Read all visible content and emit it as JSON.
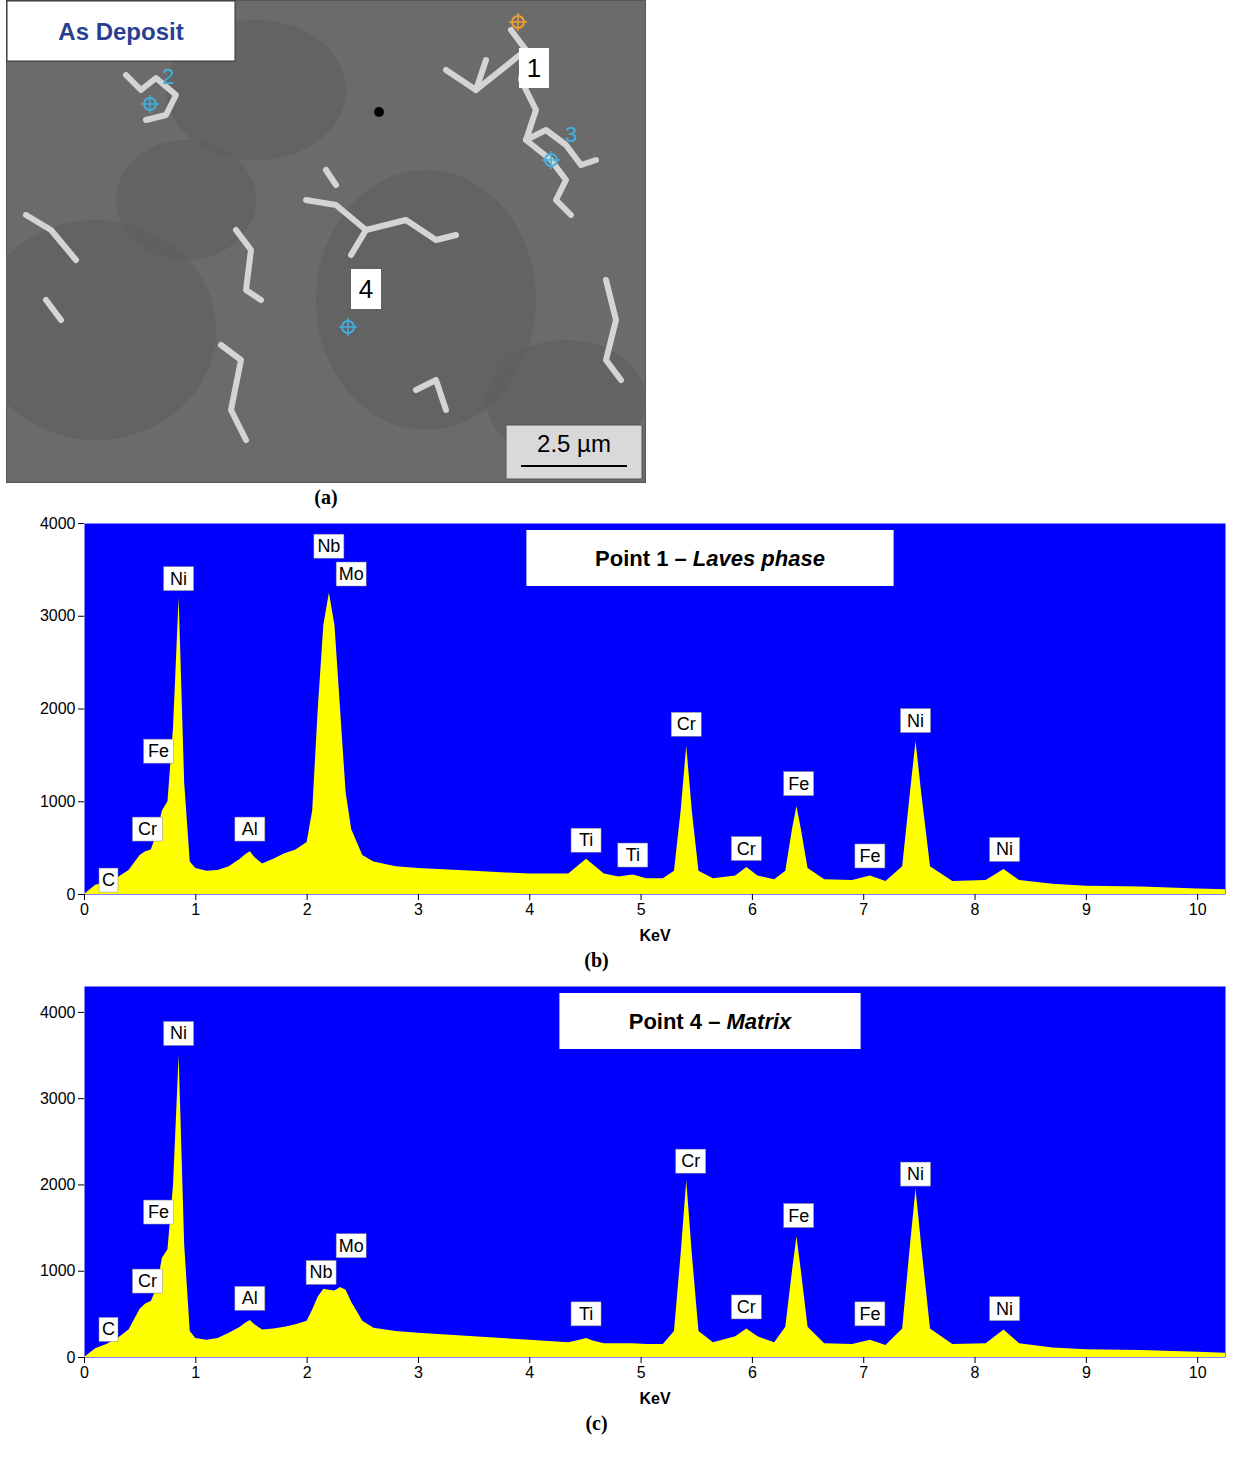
{
  "panel_a": {
    "title": "As Deposit",
    "points": [
      "1",
      "2",
      "3",
      "4"
    ],
    "scale_bar": "2.5 µm",
    "caption": "(a)"
  },
  "chart_data": [
    {
      "type": "area",
      "title": "Point 1 – Laves phase",
      "caption": "(b)",
      "x_label": "KeV",
      "x": [
        0,
        0.1,
        0.2,
        0.3,
        0.4,
        0.5,
        0.55,
        0.6,
        0.65,
        0.7,
        0.75,
        0.8,
        0.85,
        0.9,
        0.95,
        1.0,
        1.1,
        1.2,
        1.3,
        1.4,
        1.45,
        1.49,
        1.53,
        1.6,
        1.7,
        1.8,
        1.9,
        2.0,
        2.05,
        2.1,
        2.15,
        2.2,
        2.25,
        2.3,
        2.35,
        2.4,
        2.5,
        2.6,
        2.8,
        3.0,
        3.5,
        4.0,
        4.35,
        4.45,
        4.51,
        4.57,
        4.67,
        4.8,
        4.93,
        5.05,
        5.2,
        5.3,
        5.36,
        5.41,
        5.46,
        5.52,
        5.65,
        5.85,
        5.95,
        6.05,
        6.2,
        6.3,
        6.36,
        6.4,
        6.44,
        6.5,
        6.65,
        6.9,
        7.06,
        7.2,
        7.35,
        7.42,
        7.47,
        7.52,
        7.6,
        7.8,
        8.1,
        8.26,
        8.4,
        8.7,
        9.0,
        9.5,
        10.0,
        10.25
      ],
      "values": [
        0,
        100,
        130,
        180,
        260,
        420,
        460,
        480,
        650,
        900,
        1000,
        1800,
        3200,
        1200,
        350,
        280,
        250,
        260,
        300,
        380,
        430,
        460,
        400,
        330,
        380,
        440,
        480,
        560,
        900,
        2000,
        2900,
        3250,
        2900,
        2000,
        1100,
        700,
        420,
        350,
        300,
        280,
        250,
        220,
        220,
        320,
        380,
        320,
        220,
        190,
        210,
        170,
        170,
        250,
        900,
        1600,
        900,
        250,
        170,
        200,
        290,
        200,
        160,
        250,
        700,
        950,
        700,
        280,
        160,
        150,
        200,
        140,
        300,
        1100,
        1650,
        1100,
        300,
        140,
        150,
        270,
        150,
        110,
        90,
        80,
        60,
        50
      ],
      "color": "#ffff00",
      "xlim": [
        0,
        10.25
      ],
      "ylim": [
        0,
        4000
      ],
      "xticks": [
        0,
        1,
        2,
        3,
        4,
        5,
        6,
        7,
        8,
        9,
        10
      ],
      "yticks": [
        0,
        1000,
        2000,
        3000,
        4000
      ],
      "grid": false,
      "annotations": [
        {
          "text": "C",
          "x": 0.22,
          "y": 150
        },
        {
          "text": "Cr",
          "x": 0.57,
          "y": 700
        },
        {
          "text": "Fe",
          "x": 0.67,
          "y": 1540
        },
        {
          "text": "Ni",
          "x": 0.85,
          "y": 3400
        },
        {
          "text": "Al",
          "x": 1.49,
          "y": 700
        },
        {
          "text": "Nb",
          "x": 2.2,
          "y": 3750
        },
        {
          "text": "Mo",
          "x": 2.4,
          "y": 3450
        },
        {
          "text": "Ti",
          "x": 4.51,
          "y": 580
        },
        {
          "text": "Ti",
          "x": 4.93,
          "y": 420
        },
        {
          "text": "Cr",
          "x": 5.41,
          "y": 1830
        },
        {
          "text": "Cr",
          "x": 5.95,
          "y": 490
        },
        {
          "text": "Fe",
          "x": 6.42,
          "y": 1190
        },
        {
          "text": "Fe",
          "x": 7.06,
          "y": 410
        },
        {
          "text": "Ni",
          "x": 7.47,
          "y": 1870
        },
        {
          "text": "Ni",
          "x": 8.27,
          "y": 480
        }
      ]
    },
    {
      "type": "area",
      "title": "Point 4 – Matrix",
      "caption": "(c)",
      "x_label": "KeV",
      "x": [
        0,
        0.1,
        0.2,
        0.3,
        0.4,
        0.5,
        0.55,
        0.6,
        0.65,
        0.7,
        0.75,
        0.8,
        0.85,
        0.9,
        0.95,
        1.0,
        1.1,
        1.2,
        1.3,
        1.4,
        1.45,
        1.49,
        1.53,
        1.6,
        1.7,
        1.8,
        1.9,
        2.0,
        2.05,
        2.1,
        2.15,
        2.2,
        2.25,
        2.3,
        2.35,
        2.4,
        2.5,
        2.6,
        2.8,
        3.0,
        3.5,
        4.0,
        4.35,
        4.45,
        4.51,
        4.57,
        4.67,
        4.8,
        4.93,
        5.05,
        5.2,
        5.3,
        5.36,
        5.41,
        5.46,
        5.52,
        5.65,
        5.85,
        5.95,
        6.05,
        6.2,
        6.3,
        6.36,
        6.4,
        6.44,
        6.5,
        6.65,
        6.9,
        7.06,
        7.2,
        7.35,
        7.42,
        7.47,
        7.52,
        7.6,
        7.8,
        8.1,
        8.26,
        8.4,
        8.7,
        9.0,
        9.5,
        10.0,
        10.25
      ],
      "values": [
        0,
        100,
        150,
        220,
        320,
        560,
        620,
        650,
        800,
        1150,
        1250,
        2000,
        3500,
        1300,
        300,
        220,
        200,
        220,
        280,
        350,
        400,
        430,
        380,
        320,
        330,
        350,
        380,
        420,
        550,
        700,
        790,
        780,
        770,
        810,
        780,
        640,
        420,
        340,
        300,
        280,
        240,
        200,
        170,
        200,
        220,
        190,
        160,
        160,
        160,
        150,
        150,
        300,
        1200,
        2050,
        1200,
        300,
        170,
        240,
        330,
        240,
        170,
        350,
        1000,
        1400,
        1000,
        350,
        160,
        150,
        200,
        140,
        330,
        1300,
        1950,
        1300,
        330,
        150,
        160,
        320,
        160,
        110,
        90,
        80,
        60,
        50
      ],
      "color": "#ffff00",
      "xlim": [
        0,
        10.25
      ],
      "ylim": [
        0,
        4300
      ],
      "xticks": [
        0,
        1,
        2,
        3,
        4,
        5,
        6,
        7,
        8,
        9,
        10
      ],
      "yticks": [
        0,
        1000,
        2000,
        3000,
        4000
      ],
      "grid": false,
      "annotations": [
        {
          "text": "C",
          "x": 0.22,
          "y": 320
        },
        {
          "text": "Cr",
          "x": 0.57,
          "y": 880
        },
        {
          "text": "Fe",
          "x": 0.67,
          "y": 1680
        },
        {
          "text": "Ni",
          "x": 0.85,
          "y": 3750
        },
        {
          "text": "Al",
          "x": 1.49,
          "y": 680
        },
        {
          "text": "Nb",
          "x": 2.13,
          "y": 980
        },
        {
          "text": "Mo",
          "x": 2.4,
          "y": 1290
        },
        {
          "text": "Ti",
          "x": 4.51,
          "y": 500
        },
        {
          "text": "Cr",
          "x": 5.45,
          "y": 2270
        },
        {
          "text": "Cr",
          "x": 5.95,
          "y": 580
        },
        {
          "text": "Fe",
          "x": 6.42,
          "y": 1640
        },
        {
          "text": "Fe",
          "x": 7.06,
          "y": 500
        },
        {
          "text": "Ni",
          "x": 7.47,
          "y": 2120
        },
        {
          "text": "Ni",
          "x": 8.27,
          "y": 560
        }
      ]
    }
  ]
}
